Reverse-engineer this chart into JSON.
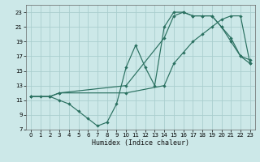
{
  "xlabel": "Humidex (Indice chaleur)",
  "background_color": "#cce8e8",
  "grid_color": "#aacece",
  "line_color": "#2a7060",
  "xlim": [
    -0.5,
    23.5
  ],
  "ylim": [
    7,
    24
  ],
  "xticks": [
    0,
    1,
    2,
    3,
    4,
    5,
    6,
    7,
    8,
    9,
    10,
    11,
    12,
    13,
    14,
    15,
    16,
    17,
    18,
    19,
    20,
    21,
    22,
    23
  ],
  "yticks": [
    7,
    9,
    11,
    13,
    15,
    17,
    19,
    21,
    23
  ],
  "line1_x": [
    0,
    1,
    2,
    3,
    4,
    5,
    6,
    7,
    8,
    9,
    10,
    11,
    12,
    13,
    14,
    15,
    16,
    17,
    18,
    19,
    20,
    21,
    22,
    23
  ],
  "line1_y": [
    11.5,
    11.5,
    11.5,
    11,
    10.5,
    9.5,
    8.5,
    7.5,
    8,
    10.5,
    15.5,
    18.5,
    15.5,
    13,
    21,
    23,
    23,
    22.5,
    22.5,
    22.5,
    21,
    19,
    17,
    16
  ],
  "line2_x": [
    0,
    2,
    3,
    10,
    14,
    15,
    16,
    17,
    18,
    19,
    20,
    21,
    22,
    23
  ],
  "line2_y": [
    11.5,
    11.5,
    12,
    13,
    19.5,
    22.5,
    23,
    22.5,
    22.5,
    22.5,
    21,
    19.5,
    17,
    16.5
  ],
  "line3_x": [
    0,
    2,
    3,
    10,
    14,
    15,
    16,
    17,
    18,
    19,
    20,
    21,
    22,
    23
  ],
  "line3_y": [
    11.5,
    11.5,
    12,
    12,
    13,
    16,
    17.5,
    19,
    20,
    21,
    22,
    22.5,
    22.5,
    16
  ]
}
